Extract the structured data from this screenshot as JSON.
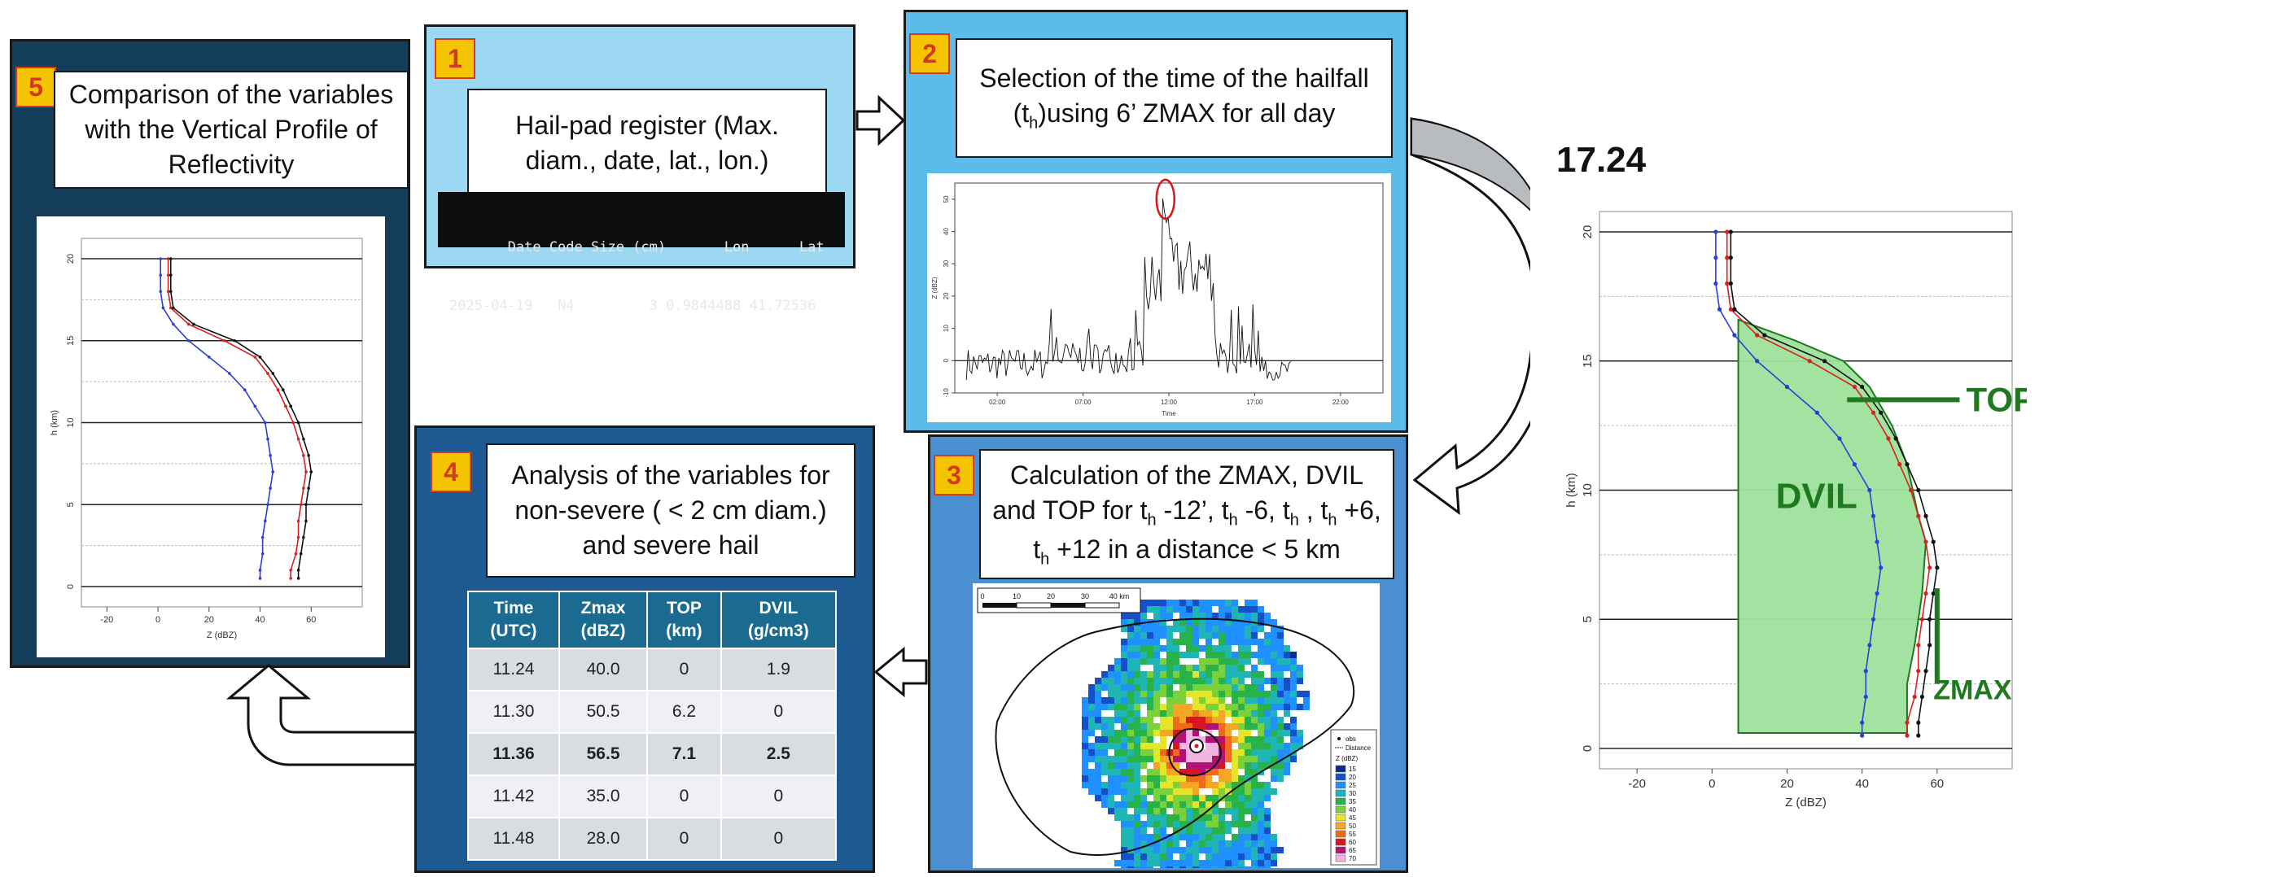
{
  "panels": {
    "p1": {
      "number": "1",
      "title": "Hail-pad register (Max. diam., date, lat., lon.)",
      "terminal_line1": "       Date Code Size (cm)       Lon      Lat",
      "terminal_line2": "2025-04-19   N4         3 0.9844488 41.72536"
    },
    "p2": {
      "number": "2",
      "title_a": "Selection of the time of the hailfall (t",
      "title_sub": "h",
      "title_b": ")using 6’ ZMAX for all day"
    },
    "p3": {
      "number": "3",
      "line1": "Calculation of the ZMAX, DVIL",
      "line2_a": "and TOP for t",
      "line2_b": " -12’, t",
      "line2_c": " -6, t",
      "line2_d": " , t",
      "line2_e": " +6,",
      "line3_b": " +12 in a distance < 5 km",
      "sub": "h"
    },
    "p4": {
      "number": "4",
      "title": "Analysis of the variables for non-severe ( < 2 cm diam.) and severe hail",
      "table": {
        "headers": [
          [
            "Time",
            "(UTC)"
          ],
          [
            "Zmax",
            "(dBZ)"
          ],
          [
            "TOP",
            "(km)"
          ],
          [
            "DVIL",
            "(g/cm3)"
          ]
        ],
        "rows": [
          [
            "11.24",
            "40.0",
            "0",
            "1.9"
          ],
          [
            "11.30",
            "50.5",
            "6.2",
            "0"
          ],
          [
            "11.36",
            "56.5",
            "7.1",
            "2.5"
          ],
          [
            "11.42",
            "35.0",
            "0",
            "0"
          ],
          [
            "11.48",
            "28.0",
            "0",
            "0"
          ]
        ]
      }
    },
    "p5": {
      "number": "5",
      "title": "Comparison of the variables with the Vertical Profile of Reflectivity"
    }
  },
  "timeseries": {
    "x_ticks": [
      "02:00",
      "07:00",
      "12:00",
      "17:00",
      "22:00"
    ],
    "y_ticks": [
      "-10",
      "0",
      "10",
      "20",
      "30",
      "40",
      "50"
    ],
    "xlabel": "Time",
    "ylabel": "Z (dBZ)",
    "ylim": [
      -10,
      55
    ]
  },
  "radar_map": {
    "scale_ticks": [
      "0",
      "10",
      "20",
      "30",
      "40 km"
    ],
    "legend": [
      "obs",
      "Distance",
      "Z (dBZ)",
      "15",
      "20",
      "25",
      "30",
      "35",
      "40",
      "45",
      "50",
      "55",
      "60",
      "65",
      "70"
    ],
    "legend_colors": [
      "#0b2a8f",
      "#1550c8",
      "#1e90ff",
      "#1fb5b5",
      "#27b34a",
      "#7bd13a",
      "#e5e52a",
      "#f5a623",
      "#f06a1e",
      "#d8161d",
      "#b3107a",
      "#f0b6e0"
    ]
  },
  "vpr_small": {
    "x_ticks": [
      "-20",
      "0",
      "20",
      "40",
      "60"
    ],
    "y_ticks": [
      "0",
      "5",
      "10",
      "15",
      "20"
    ],
    "xlabel": "Z (dBZ)",
    "ylabel": "h (km)"
  },
  "vpr_large": {
    "title": "17.24",
    "x_ticks": [
      "-20",
      "0",
      "20",
      "40",
      "60"
    ],
    "y_ticks": [
      "0",
      "5",
      "10",
      "15",
      "20"
    ],
    "xlabel": "Z (dBZ)",
    "ylabel": "h (km)",
    "labels": {
      "top": "TOP",
      "dvil": "DVIL",
      "zmax": "ZMAX"
    }
  },
  "colors": {
    "panel_light": "#9dd8f2",
    "panel_mid": "#5bbcea",
    "panel_blue": "#4a8fd0",
    "panel_navy": "#1d5a92",
    "panel_dark": "#143d5c",
    "badge": "#f5c400",
    "badge_text": "#d23b1e",
    "dvil_fill": "#9de29d",
    "annot_green": "#1f7a1f"
  }
}
